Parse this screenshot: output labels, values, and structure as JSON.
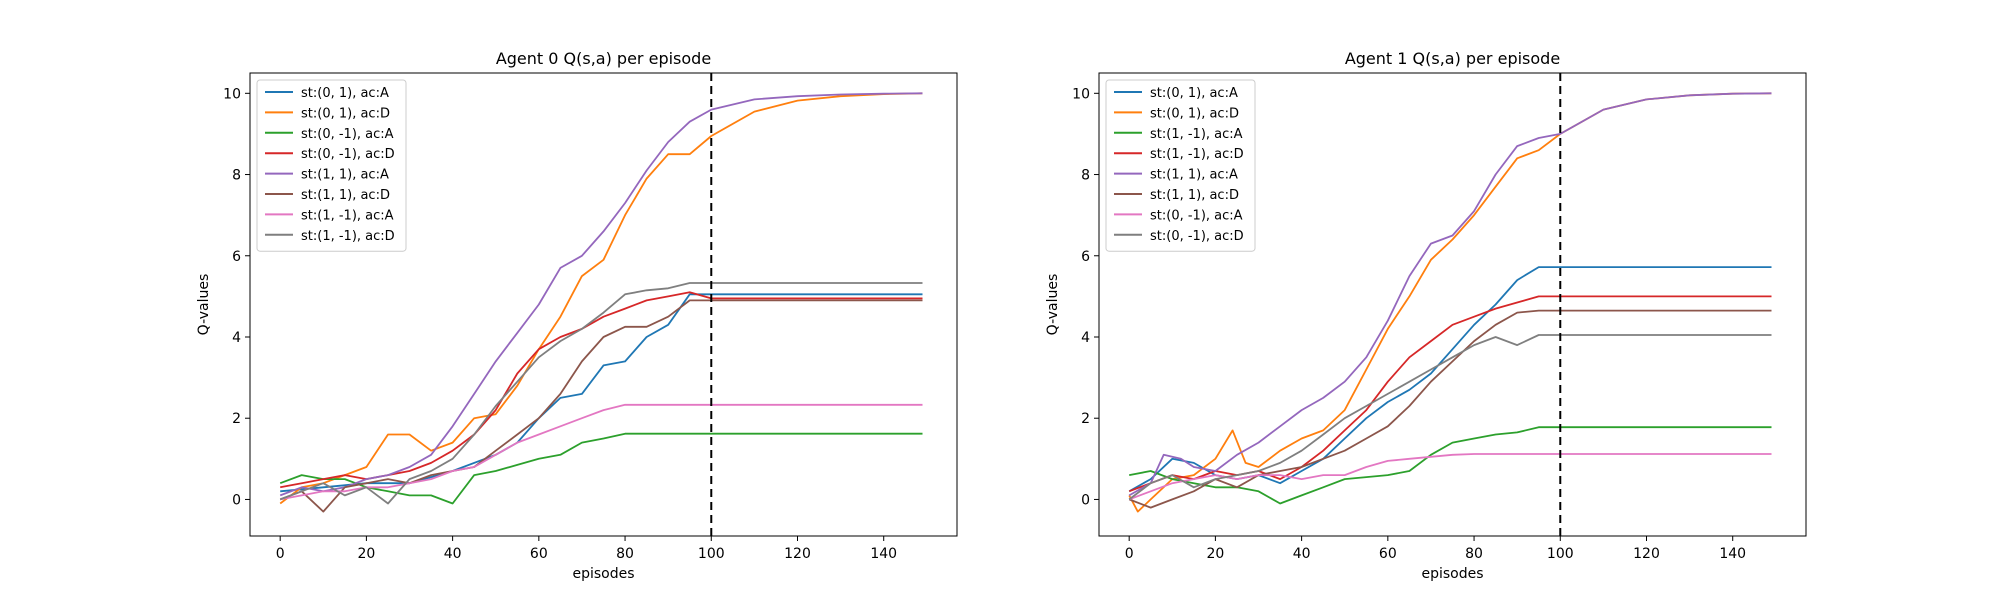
{
  "chart_data": [
    {
      "type": "line",
      "title": "Agent 0 Q(s,a) per episode",
      "xlabel": "episodes",
      "ylabel": "Q-values",
      "xlim": [
        -7,
        157
      ],
      "ylim": [
        -0.9,
        10.5
      ],
      "xticks": [
        "0",
        "20",
        "40",
        "60",
        "80",
        "100",
        "120",
        "140"
      ],
      "yticks": [
        "0",
        "2",
        "4",
        "6",
        "8",
        "10"
      ],
      "vline_x": 100,
      "legend_position": "upper-left",
      "series": [
        {
          "name": "st:(0, 1), ac:A",
          "color": "#1f77b4",
          "x": [
            0,
            10,
            20,
            30,
            40,
            50,
            55,
            60,
            65,
            70,
            75,
            80,
            85,
            90,
            95,
            100,
            149
          ],
          "y": [
            0.2,
            0.3,
            0.4,
            0.4,
            0.7,
            1.1,
            1.4,
            2.0,
            2.5,
            2.6,
            3.3,
            3.4,
            4.0,
            4.3,
            5.05,
            5.05,
            5.05
          ]
        },
        {
          "name": "st:(0, 1), ac:D",
          "color": "#ff7f0e",
          "x": [
            0,
            5,
            10,
            15,
            20,
            25,
            30,
            35,
            40,
            45,
            50,
            55,
            60,
            65,
            70,
            75,
            80,
            85,
            90,
            95,
            100,
            110,
            120,
            130,
            140,
            149
          ],
          "y": [
            -0.1,
            0.3,
            0.4,
            0.6,
            0.8,
            1.6,
            1.6,
            1.2,
            1.4,
            2.0,
            2.1,
            2.8,
            3.7,
            4.5,
            5.5,
            5.9,
            7.0,
            7.9,
            8.5,
            8.5,
            8.95,
            9.55,
            9.82,
            9.93,
            9.98,
            10.0
          ]
        },
        {
          "name": "st:(0, -1), ac:A",
          "color": "#2ca02c",
          "x": [
            0,
            5,
            10,
            15,
            20,
            25,
            30,
            35,
            40,
            45,
            50,
            55,
            60,
            65,
            70,
            75,
            80,
            90,
            149
          ],
          "y": [
            0.4,
            0.6,
            0.5,
            0.5,
            0.3,
            0.2,
            0.1,
            0.1,
            -0.1,
            0.6,
            0.7,
            0.85,
            1.0,
            1.1,
            1.4,
            1.5,
            1.62,
            1.62,
            1.62
          ]
        },
        {
          "name": "st:(0, -1), ac:D",
          "color": "#d62728",
          "x": [
            0,
            5,
            10,
            15,
            20,
            25,
            30,
            35,
            40,
            45,
            50,
            55,
            60,
            65,
            70,
            75,
            80,
            85,
            90,
            95,
            100,
            149
          ],
          "y": [
            0.3,
            0.4,
            0.5,
            0.6,
            0.5,
            0.6,
            0.7,
            0.9,
            1.2,
            1.6,
            2.2,
            3.1,
            3.7,
            4.0,
            4.2,
            4.5,
            4.7,
            4.9,
            5.0,
            5.1,
            4.95,
            4.95
          ]
        },
        {
          "name": "st:(1, 1), ac:A",
          "color": "#9467bd",
          "x": [
            0,
            5,
            10,
            15,
            20,
            25,
            30,
            35,
            40,
            45,
            50,
            55,
            60,
            65,
            70,
            75,
            80,
            85,
            90,
            95,
            100,
            110,
            120,
            130,
            140,
            149
          ],
          "y": [
            0.1,
            0.3,
            0.2,
            0.3,
            0.5,
            0.6,
            0.8,
            1.1,
            1.8,
            2.6,
            3.4,
            4.1,
            4.8,
            5.7,
            6.0,
            6.6,
            7.3,
            8.1,
            8.8,
            9.3,
            9.6,
            9.85,
            9.93,
            9.97,
            9.99,
            10.0
          ]
        },
        {
          "name": "st:(1, 1), ac:D",
          "color": "#8c564b",
          "x": [
            0,
            5,
            10,
            15,
            20,
            25,
            30,
            35,
            40,
            45,
            50,
            55,
            60,
            65,
            70,
            75,
            80,
            85,
            90,
            95,
            100,
            149
          ],
          "y": [
            0.0,
            0.2,
            -0.3,
            0.3,
            0.4,
            0.5,
            0.4,
            0.6,
            0.7,
            0.8,
            1.2,
            1.6,
            2.0,
            2.6,
            3.4,
            4.0,
            4.25,
            4.25,
            4.5,
            4.9,
            4.9,
            4.9
          ]
        },
        {
          "name": "st:(1, -1), ac:A",
          "color": "#e377c2",
          "x": [
            0,
            5,
            10,
            15,
            20,
            25,
            30,
            35,
            40,
            45,
            50,
            55,
            60,
            65,
            70,
            75,
            80,
            90,
            100,
            149
          ],
          "y": [
            0.0,
            0.1,
            0.2,
            0.2,
            0.3,
            0.3,
            0.4,
            0.5,
            0.7,
            0.8,
            1.1,
            1.4,
            1.6,
            1.8,
            2.0,
            2.2,
            2.33,
            2.33,
            2.33,
            2.33
          ]
        },
        {
          "name": "st:(1, -1), ac:D",
          "color": "#7f7f7f",
          "x": [
            0,
            5,
            10,
            15,
            20,
            25,
            30,
            35,
            40,
            45,
            50,
            55,
            60,
            65,
            70,
            75,
            80,
            85,
            90,
            95,
            100,
            149
          ],
          "y": [
            0.0,
            0.2,
            0.4,
            0.1,
            0.3,
            -0.1,
            0.5,
            0.7,
            1.0,
            1.6,
            2.3,
            2.9,
            3.5,
            3.9,
            4.2,
            4.6,
            5.05,
            5.15,
            5.2,
            5.33,
            5.33,
            5.33
          ]
        }
      ]
    },
    {
      "type": "line",
      "title": "Agent 1 Q(s,a) per episode",
      "xlabel": "episodes",
      "ylabel": "Q-values",
      "xlim": [
        -7,
        157
      ],
      "ylim": [
        -0.9,
        10.5
      ],
      "xticks": [
        "0",
        "20",
        "40",
        "60",
        "80",
        "100",
        "120",
        "140"
      ],
      "yticks": [
        "0",
        "2",
        "4",
        "6",
        "8",
        "10"
      ],
      "vline_x": 100,
      "legend_position": "upper-left",
      "series": [
        {
          "name": "st:(0, 1), ac:A",
          "color": "#1f77b4",
          "x": [
            0,
            5,
            10,
            15,
            20,
            25,
            30,
            35,
            40,
            45,
            50,
            55,
            60,
            65,
            70,
            75,
            80,
            85,
            90,
            95,
            100,
            149
          ],
          "y": [
            0.2,
            0.5,
            1.0,
            0.9,
            0.6,
            0.5,
            0.6,
            0.4,
            0.7,
            1.0,
            1.5,
            2.0,
            2.4,
            2.7,
            3.1,
            3.7,
            4.3,
            4.8,
            5.4,
            5.72,
            5.72,
            5.72
          ]
        },
        {
          "name": "st:(0, 1), ac:D",
          "color": "#ff7f0e",
          "x": [
            0,
            2,
            5,
            10,
            15,
            20,
            24,
            27,
            30,
            35,
            40,
            45,
            50,
            55,
            60,
            65,
            70,
            75,
            80,
            85,
            90,
            95,
            100,
            110,
            120,
            130,
            140,
            149
          ],
          "y": [
            0.1,
            -0.3,
            0.0,
            0.5,
            0.6,
            1.0,
            1.7,
            0.9,
            0.8,
            1.2,
            1.5,
            1.7,
            2.2,
            3.2,
            4.2,
            5.0,
            5.9,
            6.4,
            7.0,
            7.7,
            8.4,
            8.6,
            9.0,
            9.6,
            9.85,
            9.95,
            9.99,
            10.0
          ]
        },
        {
          "name": "st:(1, -1), ac:A",
          "color": "#2ca02c",
          "x": [
            0,
            5,
            10,
            15,
            20,
            25,
            30,
            35,
            40,
            45,
            50,
            55,
            60,
            65,
            70,
            75,
            80,
            85,
            90,
            95,
            100,
            149
          ],
          "y": [
            0.6,
            0.7,
            0.5,
            0.4,
            0.3,
            0.3,
            0.2,
            -0.1,
            0.1,
            0.3,
            0.5,
            0.55,
            0.6,
            0.7,
            1.1,
            1.4,
            1.5,
            1.6,
            1.65,
            1.78,
            1.78,
            1.78
          ]
        },
        {
          "name": "st:(1, -1), ac:D",
          "color": "#d62728",
          "x": [
            0,
            5,
            10,
            15,
            20,
            25,
            30,
            35,
            40,
            45,
            50,
            55,
            60,
            65,
            70,
            75,
            80,
            85,
            90,
            95,
            100,
            149
          ],
          "y": [
            0.2,
            0.4,
            0.6,
            0.5,
            0.7,
            0.6,
            0.7,
            0.5,
            0.8,
            1.2,
            1.7,
            2.2,
            2.9,
            3.5,
            3.9,
            4.3,
            4.5,
            4.7,
            4.85,
            5.0,
            5.0,
            5.0
          ]
        },
        {
          "name": "st:(1, 1), ac:A",
          "color": "#9467bd",
          "x": [
            0,
            5,
            8,
            12,
            15,
            20,
            25,
            30,
            35,
            40,
            45,
            50,
            55,
            60,
            65,
            70,
            75,
            80,
            85,
            90,
            95,
            100,
            110,
            120,
            130,
            140,
            149
          ],
          "y": [
            0.1,
            0.4,
            1.1,
            1.0,
            0.8,
            0.7,
            1.1,
            1.4,
            1.8,
            2.2,
            2.5,
            2.9,
            3.5,
            4.4,
            5.5,
            6.3,
            6.5,
            7.1,
            8.0,
            8.7,
            8.9,
            9.0,
            9.6,
            9.85,
            9.95,
            9.99,
            10.0
          ]
        },
        {
          "name": "st:(1, 1), ac:D",
          "color": "#8c564b",
          "x": [
            0,
            5,
            10,
            15,
            20,
            25,
            30,
            35,
            40,
            45,
            50,
            55,
            60,
            65,
            70,
            75,
            80,
            85,
            90,
            95,
            100,
            149
          ],
          "y": [
            0.0,
            -0.2,
            0.0,
            0.2,
            0.5,
            0.3,
            0.6,
            0.7,
            0.8,
            1.0,
            1.2,
            1.5,
            1.8,
            2.3,
            2.9,
            3.4,
            3.9,
            4.3,
            4.6,
            4.65,
            4.65,
            4.65
          ]
        },
        {
          "name": "st:(0, -1), ac:A",
          "color": "#e377c2",
          "x": [
            0,
            5,
            10,
            15,
            20,
            25,
            30,
            35,
            40,
            45,
            50,
            55,
            60,
            65,
            70,
            75,
            80,
            90,
            100,
            149
          ],
          "y": [
            0.0,
            0.2,
            0.4,
            0.5,
            0.6,
            0.5,
            0.6,
            0.6,
            0.5,
            0.6,
            0.6,
            0.8,
            0.95,
            1.0,
            1.05,
            1.1,
            1.12,
            1.12,
            1.12,
            1.12
          ]
        },
        {
          "name": "st:(0, -1), ac:D",
          "color": "#7f7f7f",
          "x": [
            0,
            5,
            10,
            15,
            20,
            25,
            30,
            35,
            40,
            45,
            50,
            55,
            60,
            65,
            70,
            75,
            80,
            85,
            90,
            95,
            100,
            149
          ],
          "y": [
            0.0,
            0.4,
            0.6,
            0.3,
            0.5,
            0.6,
            0.7,
            0.9,
            1.2,
            1.6,
            2.0,
            2.3,
            2.6,
            2.9,
            3.2,
            3.5,
            3.8,
            4.0,
            3.8,
            4.05,
            4.05,
            4.05
          ]
        }
      ]
    }
  ]
}
